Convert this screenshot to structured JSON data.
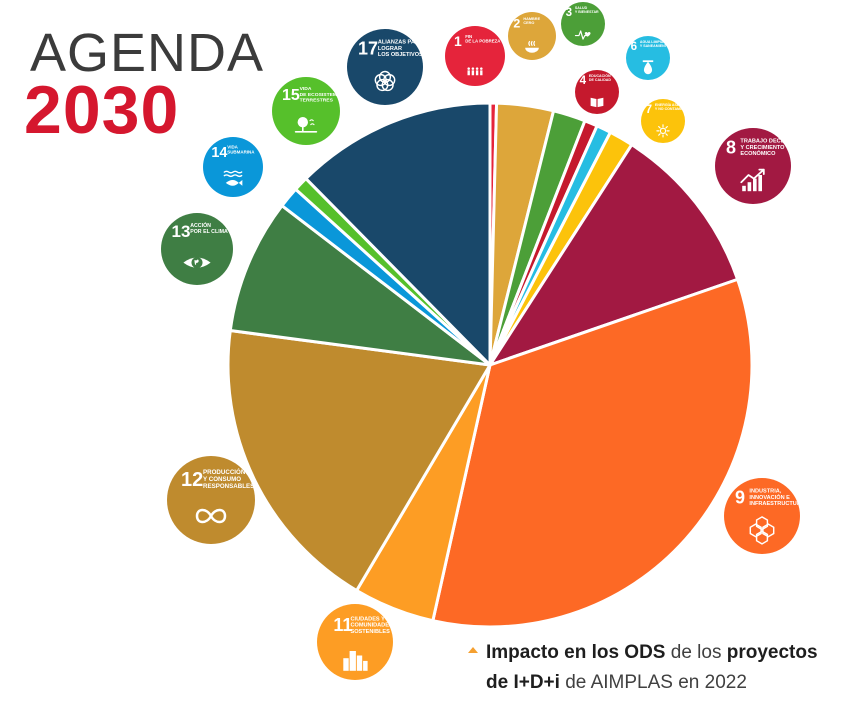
{
  "logo": {
    "line1": "AGENDA",
    "line2": "2030"
  },
  "caption": {
    "p1_bold": "Impacto en los ODS",
    "p2": " de los ",
    "p3_bold": "proyectos",
    "p4_bold": "de I+D+i",
    "p5": " de AIMPLAS en 2022"
  },
  "chart_data": {
    "type": "pie",
    "title": "",
    "start": "top, clockwise",
    "slices": [
      {
        "goal": "1",
        "label": "FIN DE LA POBREZA",
        "value": 0.4,
        "color": "#e5243b"
      },
      {
        "goal": "2",
        "label": "HAMBRE CERO",
        "value": 3.5,
        "color": "#dda63a"
      },
      {
        "goal": "3",
        "label": "SALUD Y BIENESTAR",
        "value": 2.0,
        "color": "#4c9f38"
      },
      {
        "goal": "4",
        "label": "EDUCACIÓN DE CALIDAD",
        "value": 0.8,
        "color": "#c5192d"
      },
      {
        "goal": "6",
        "label": "AGUA LIMPIA Y SANEAMIENTO",
        "value": 0.9,
        "color": "#26bde2"
      },
      {
        "goal": "7",
        "label": "ENERGÍA ASEQUIBLE Y NO CONTAMINANTE",
        "value": 1.5,
        "color": "#fcc30b"
      },
      {
        "goal": "8",
        "label": "TRABAJO DECENTE Y CRECIMIENTO ECONÓMICO",
        "value": 10.6,
        "color": "#a21942"
      },
      {
        "goal": "9",
        "label": "INDUSTRIA, INNOVACIÓN E INFRAESTRUCTURA",
        "value": 33.8,
        "color": "#fd6925"
      },
      {
        "goal": "11",
        "label": "CIUDADES Y COMUNIDADES SOSTENIBLES",
        "value": 5.0,
        "color": "#fd9d24"
      },
      {
        "goal": "12",
        "label": "PRODUCCIÓN Y CONSUMO RESPONSABLES",
        "value": 18.6,
        "color": "#bf8b2e"
      },
      {
        "goal": "13",
        "label": "ACCIÓN POR EL CLIMA",
        "value": 8.3,
        "color": "#3f7e44"
      },
      {
        "goal": "14",
        "label": "VIDA SUBMARINA",
        "value": 1.3,
        "color": "#0a97d9"
      },
      {
        "goal": "15",
        "label": "VIDA DE ECOSISTEMAS TERRESTRES",
        "value": 0.9,
        "color": "#56c02b"
      },
      {
        "goal": "17",
        "label": "ALIANZAS PARA LOGRAR LOS OBJETIVOS",
        "value": 12.4,
        "color": "#19486a"
      }
    ]
  },
  "badges": [
    {
      "goal": "1",
      "l1": "FIN",
      "l2": "DE LA POBREZA",
      "l3": "",
      "icon": "family-icon",
      "color": "#e5243b"
    },
    {
      "goal": "2",
      "l1": "HAMBRE",
      "l2": "CERO",
      "l3": "",
      "icon": "bowl-icon",
      "color": "#dda63a"
    },
    {
      "goal": "3",
      "l1": "SALUD",
      "l2": "Y BIENESTAR",
      "l3": "",
      "icon": "heartbeat-icon",
      "color": "#4c9f38"
    },
    {
      "goal": "4",
      "l1": "EDUCACIÓN",
      "l2": "DE CALIDAD",
      "l3": "",
      "icon": "book-icon",
      "color": "#c5192d"
    },
    {
      "goal": "6",
      "l1": "AGUA LIMPIA",
      "l2": "Y SANEAMIENTO",
      "l3": "",
      "icon": "water-drop-icon",
      "color": "#26bde2"
    },
    {
      "goal": "7",
      "l1": "ENERGÍA ASEQUIBLE",
      "l2": "Y NO CONTAMINANTE",
      "l3": "",
      "icon": "sun-icon",
      "color": "#fcc30b"
    },
    {
      "goal": "8",
      "l1": "TRABAJO DECENTE",
      "l2": "Y CRECIMIENTO",
      "l3": "ECONÓMICO",
      "icon": "growth-chart-icon",
      "color": "#a21942"
    },
    {
      "goal": "9",
      "l1": "INDUSTRIA,",
      "l2": "INNOVACIÓN E",
      "l3": "INFRAESTRUCTURA",
      "icon": "cubes-icon",
      "color": "#fd6925"
    },
    {
      "goal": "11",
      "l1": "CIUDADES Y",
      "l2": "COMUNIDADES",
      "l3": "SOSTENIBLES",
      "icon": "city-icon",
      "color": "#fd9d24"
    },
    {
      "goal": "12",
      "l1": "PRODUCCIÓN",
      "l2": "Y CONSUMO",
      "l3": "RESPONSABLES",
      "icon": "infinity-icon",
      "color": "#bf8b2e"
    },
    {
      "goal": "13",
      "l1": "ACCIÓN",
      "l2": "POR EL CLIMA",
      "l3": "",
      "icon": "eye-globe-icon",
      "color": "#3f7e44"
    },
    {
      "goal": "14",
      "l1": "VIDA",
      "l2": "SUBMARINA",
      "l3": "",
      "icon": "fish-icon",
      "color": "#0a97d9"
    },
    {
      "goal": "15",
      "l1": "VIDA",
      "l2": "DE ECOSISTEMAS",
      "l3": "TERRESTRES",
      "icon": "tree-icon",
      "color": "#56c02b"
    },
    {
      "goal": "17",
      "l1": "ALIANZAS PARA",
      "l2": "LOGRAR",
      "l3": "LOS OBJETIVOS",
      "icon": "flower-icon",
      "color": "#19486a"
    }
  ]
}
